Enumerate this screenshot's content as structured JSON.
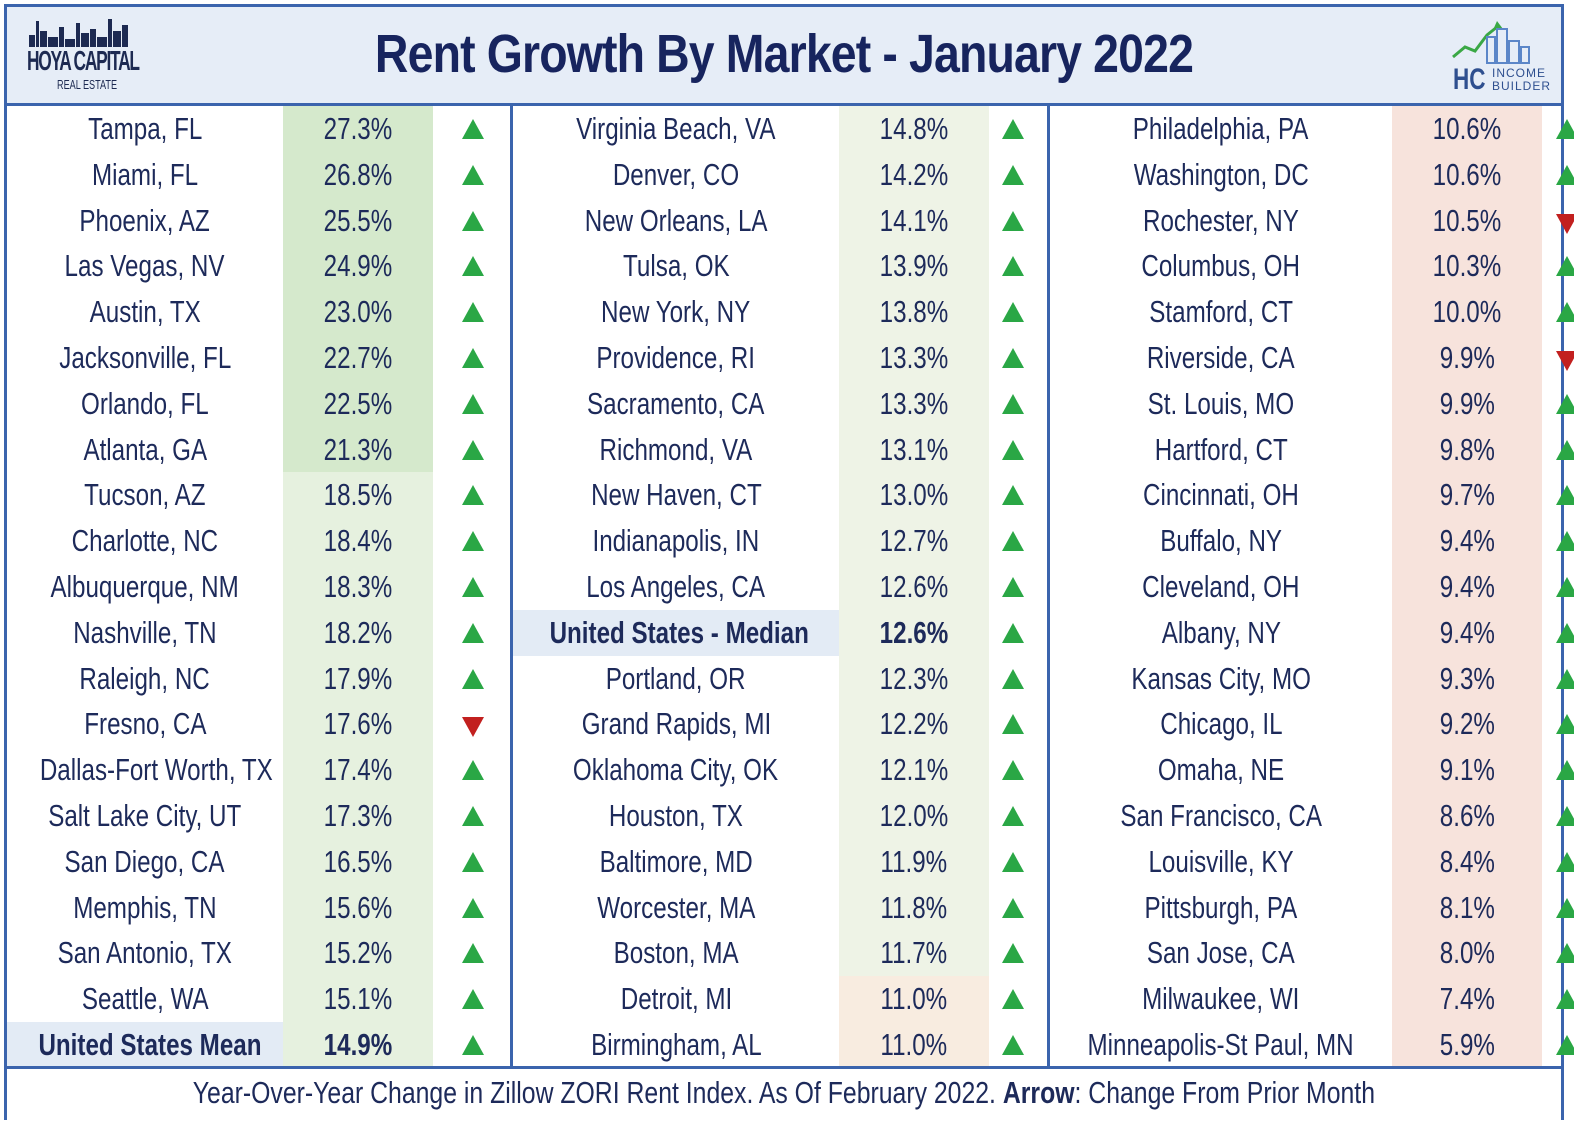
{
  "header": {
    "title": "Rent Growth By Market - January 2022",
    "logo_left": {
      "line1": "HOYA CAPITAL",
      "line2": "REAL ESTATE"
    },
    "logo_right": {
      "mark": "HC",
      "line1": "INCOME",
      "line2": "BUILDER"
    }
  },
  "colors": {
    "border": "#3b64ad",
    "title": "#17245e",
    "up_arrow": "#2aa745",
    "down_arrow": "#c2201f",
    "high_green": "#d5e9cc",
    "mid_green": "#e6f1df",
    "low_green": "#eef3e6",
    "light_peach": "#f8ece0",
    "peach": "#f7e3dc",
    "median_highlight": "#e3ebf5"
  },
  "columns": [
    {
      "rows": [
        {
          "market": "Tampa, FL",
          "value": "27.3%",
          "arrow": "up"
        },
        {
          "market": "Miami, FL",
          "value": "26.8%",
          "arrow": "up"
        },
        {
          "market": "Phoenix, AZ",
          "value": "25.5%",
          "arrow": "up"
        },
        {
          "market": "Las Vegas, NV",
          "value": "24.9%",
          "arrow": "up"
        },
        {
          "market": "Austin, TX",
          "value": "23.0%",
          "arrow": "up"
        },
        {
          "market": "Jacksonville, FL",
          "value": "22.7%",
          "arrow": "up"
        },
        {
          "market": "Orlando, FL",
          "value": "22.5%",
          "arrow": "up"
        },
        {
          "market": "Atlanta, GA",
          "value": "21.3%",
          "arrow": "up"
        },
        {
          "market": "Tucson, AZ",
          "value": "18.5%",
          "arrow": "up"
        },
        {
          "market": "Charlotte, NC",
          "value": "18.4%",
          "arrow": "up"
        },
        {
          "market": "Albuquerque, NM",
          "value": "18.3%",
          "arrow": "up"
        },
        {
          "market": "Nashville, TN",
          "value": "18.2%",
          "arrow": "up"
        },
        {
          "market": "Raleigh, NC",
          "value": "17.9%",
          "arrow": "up"
        },
        {
          "market": "Fresno, CA",
          "value": "17.6%",
          "arrow": "down"
        },
        {
          "market": "Dallas-Fort Worth, TX",
          "value": "17.4%",
          "arrow": "up"
        },
        {
          "market": "Salt Lake City, UT",
          "value": "17.3%",
          "arrow": "up"
        },
        {
          "market": "San Diego, CA",
          "value": "16.5%",
          "arrow": "up"
        },
        {
          "market": "Memphis, TN",
          "value": "15.6%",
          "arrow": "up"
        },
        {
          "market": "San Antonio, TX",
          "value": "15.2%",
          "arrow": "up"
        },
        {
          "market": "Seattle, WA",
          "value": "15.1%",
          "arrow": "up"
        },
        {
          "market": "United States Mean",
          "value": "14.9%",
          "arrow": "up",
          "highlight": true
        }
      ]
    },
    {
      "rows": [
        {
          "market": "Virginia Beach, VA",
          "value": "14.8%",
          "arrow": "up"
        },
        {
          "market": "Denver, CO",
          "value": "14.2%",
          "arrow": "up"
        },
        {
          "market": "New Orleans, LA",
          "value": "14.1%",
          "arrow": "up"
        },
        {
          "market": "Tulsa, OK",
          "value": "13.9%",
          "arrow": "up"
        },
        {
          "market": "New York, NY",
          "value": "13.8%",
          "arrow": "up"
        },
        {
          "market": "Providence, RI",
          "value": "13.3%",
          "arrow": "up"
        },
        {
          "market": "Sacramento, CA",
          "value": "13.3%",
          "arrow": "up"
        },
        {
          "market": "Richmond, VA",
          "value": "13.1%",
          "arrow": "up"
        },
        {
          "market": "New Haven, CT",
          "value": "13.0%",
          "arrow": "up"
        },
        {
          "market": "Indianapolis, IN",
          "value": "12.7%",
          "arrow": "up"
        },
        {
          "market": "Los Angeles, CA",
          "value": "12.6%",
          "arrow": "up"
        },
        {
          "market": "United States - Median",
          "value": "12.6%",
          "arrow": "up",
          "highlight": true
        },
        {
          "market": "Portland, OR",
          "value": "12.3%",
          "arrow": "up"
        },
        {
          "market": "Grand Rapids, MI",
          "value": "12.2%",
          "arrow": "up"
        },
        {
          "market": "Oklahoma City, OK",
          "value": "12.1%",
          "arrow": "up"
        },
        {
          "market": "Houston, TX",
          "value": "12.0%",
          "arrow": "up"
        },
        {
          "market": "Baltimore, MD",
          "value": "11.9%",
          "arrow": "up"
        },
        {
          "market": "Worcester, MA",
          "value": "11.8%",
          "arrow": "up"
        },
        {
          "market": "Boston, MA",
          "value": "11.7%",
          "arrow": "up"
        },
        {
          "market": "Detroit, MI",
          "value": "11.0%",
          "arrow": "up"
        },
        {
          "market": "Birmingham, AL",
          "value": "11.0%",
          "arrow": "up"
        }
      ]
    },
    {
      "rows": [
        {
          "market": "Philadelphia, PA",
          "value": "10.6%",
          "arrow": "up"
        },
        {
          "market": "Washington, DC",
          "value": "10.6%",
          "arrow": "up"
        },
        {
          "market": "Rochester, NY",
          "value": "10.5%",
          "arrow": "down"
        },
        {
          "market": "Columbus, OH",
          "value": "10.3%",
          "arrow": "up"
        },
        {
          "market": "Stamford, CT",
          "value": "10.0%",
          "arrow": "up"
        },
        {
          "market": "Riverside, CA",
          "value": "9.9%",
          "arrow": "down"
        },
        {
          "market": "St. Louis, MO",
          "value": "9.9%",
          "arrow": "up"
        },
        {
          "market": "Hartford, CT",
          "value": "9.8%",
          "arrow": "up"
        },
        {
          "market": "Cincinnati, OH",
          "value": "9.7%",
          "arrow": "up"
        },
        {
          "market": "Buffalo, NY",
          "value": "9.4%",
          "arrow": "up"
        },
        {
          "market": "Cleveland, OH",
          "value": "9.4%",
          "arrow": "up"
        },
        {
          "market": "Albany, NY",
          "value": "9.4%",
          "arrow": "up"
        },
        {
          "market": "Kansas City, MO",
          "value": "9.3%",
          "arrow": "up"
        },
        {
          "market": "Chicago, IL",
          "value": "9.2%",
          "arrow": "up"
        },
        {
          "market": "Omaha, NE",
          "value": "9.1%",
          "arrow": "up"
        },
        {
          "market": "San Francisco, CA",
          "value": "8.6%",
          "arrow": "up"
        },
        {
          "market": "Louisville, KY",
          "value": "8.4%",
          "arrow": "up"
        },
        {
          "market": "Pittsburgh, PA",
          "value": "8.1%",
          "arrow": "up"
        },
        {
          "market": "San Jose, CA",
          "value": "8.0%",
          "arrow": "up"
        },
        {
          "market": "Milwaukee, WI",
          "value": "7.4%",
          "arrow": "up"
        },
        {
          "market": "Minneapolis-St Paul, MN",
          "value": "5.9%",
          "arrow": "up"
        }
      ]
    }
  ],
  "footer": {
    "text_before": "Year-Over-Year Change in Zillow ZORI Rent Index. As Of February 2022.",
    "bold": "Arrow",
    "text_after": ": Change From Prior Month"
  }
}
